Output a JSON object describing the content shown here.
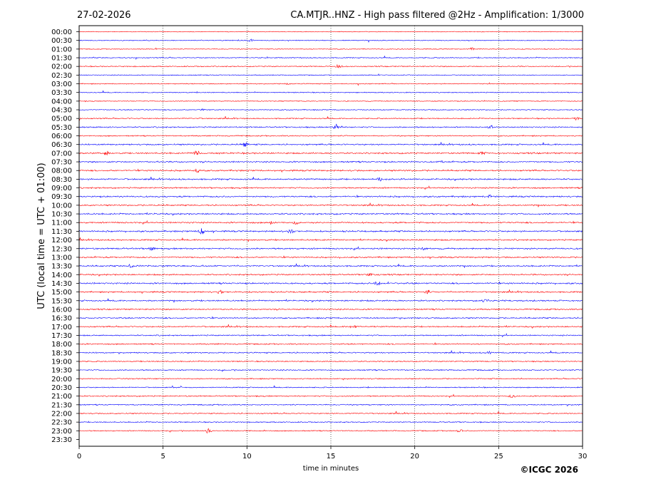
{
  "header": {
    "date": "27-02-2026",
    "title": "CA.MTJR..HNZ - High pass filtered @2Hz - Amplification: 1/3000"
  },
  "footer": {
    "copyright": "©ICGC 2026"
  },
  "chart_data": {
    "type": "line",
    "title": "CA.MTJR..HNZ - High pass filtered @2Hz - Amplification: 1/3000",
    "xlabel": "time in minutes",
    "ylabel": "UTC (local time = UTC + 01:00)",
    "xlim": [
      0,
      30
    ],
    "xticks": [
      0,
      5,
      10,
      15,
      20,
      25,
      30
    ],
    "grid": {
      "vertical_dotted": true,
      "at": [
        5,
        10,
        15,
        20,
        25
      ]
    },
    "row_labels": [
      "00:00",
      "00:30",
      "01:00",
      "01:30",
      "02:00",
      "02:30",
      "03:00",
      "03:30",
      "04:00",
      "04:30",
      "05:00",
      "05:30",
      "06:00",
      "06:30",
      "07:00",
      "07:30",
      "08:00",
      "08:30",
      "09:00",
      "09:30",
      "10:00",
      "10:30",
      "11:00",
      "11:30",
      "12:00",
      "12:30",
      "13:00",
      "13:30",
      "14:00",
      "14:30",
      "15:00",
      "15:30",
      "16:00",
      "16:30",
      "17:00",
      "17:30",
      "18:00",
      "18:30",
      "19:00",
      "19:30",
      "20:00",
      "20:30",
      "21:00",
      "21:30",
      "22:00",
      "22:30",
      "23:00",
      "23:30"
    ],
    "trace_colors": [
      "#ff0000",
      "#0000ff"
    ],
    "trace_activity": [
      0.2,
      0.3,
      0.3,
      0.4,
      0.5,
      0.3,
      0.4,
      0.4,
      0.3,
      0.4,
      0.6,
      0.7,
      0.6,
      0.9,
      1.0,
      0.9,
      1.0,
      1.0,
      0.9,
      1.0,
      0.9,
      1.0,
      1.0,
      1.0,
      0.9,
      1.0,
      0.9,
      0.9,
      0.9,
      1.0,
      0.9,
      0.9,
      0.8,
      0.8,
      0.8,
      0.7,
      0.7,
      0.7,
      0.6,
      0.6,
      0.6,
      0.5,
      0.7,
      0.6,
      0.6,
      0.5,
      0.5,
      0.0
    ],
    "events": [
      {
        "row": 1,
        "t": 10.2,
        "a": 2
      },
      {
        "row": 2,
        "t": 23.4,
        "a": 2
      },
      {
        "row": 4,
        "t": 15.5,
        "a": 4
      },
      {
        "row": 6,
        "t": 12.5,
        "a": 2
      },
      {
        "row": 9,
        "t": 7.3,
        "a": 2
      },
      {
        "row": 10,
        "t": 29.6,
        "a": 3
      },
      {
        "row": 11,
        "t": 15.3,
        "a": 4
      },
      {
        "row": 11,
        "t": 24.5,
        "a": 3
      },
      {
        "row": 13,
        "t": 9.9,
        "a": 4
      },
      {
        "row": 14,
        "t": 1.6,
        "a": 4
      },
      {
        "row": 14,
        "t": 7.0,
        "a": 4
      },
      {
        "row": 14,
        "t": 24.0,
        "a": 3
      },
      {
        "row": 16,
        "t": 7.0,
        "a": 3
      },
      {
        "row": 17,
        "t": 17.9,
        "a": 3
      },
      {
        "row": 19,
        "t": 24.5,
        "a": 3
      },
      {
        "row": 22,
        "t": 11.5,
        "a": 4
      },
      {
        "row": 22,
        "t": 12.9,
        "a": 3
      },
      {
        "row": 23,
        "t": 7.3,
        "a": 5
      },
      {
        "row": 23,
        "t": 12.6,
        "a": 3
      },
      {
        "row": 25,
        "t": 4.3,
        "a": 3
      },
      {
        "row": 25,
        "t": 20.6,
        "a": 2
      },
      {
        "row": 27,
        "t": 3.1,
        "a": 3
      },
      {
        "row": 28,
        "t": 17.3,
        "a": 2
      },
      {
        "row": 29,
        "t": 17.8,
        "a": 3
      },
      {
        "row": 30,
        "t": 8.4,
        "a": 3
      },
      {
        "row": 30,
        "t": 20.8,
        "a": 3
      },
      {
        "row": 31,
        "t": 24.2,
        "a": 3
      },
      {
        "row": 34,
        "t": 16.3,
        "a": 3
      },
      {
        "row": 37,
        "t": 24.4,
        "a": 3
      },
      {
        "row": 42,
        "t": 25.8,
        "a": 3
      },
      {
        "row": 46,
        "t": 7.7,
        "a": 4
      },
      {
        "row": 46,
        "t": 22.7,
        "a": 3
      }
    ]
  }
}
